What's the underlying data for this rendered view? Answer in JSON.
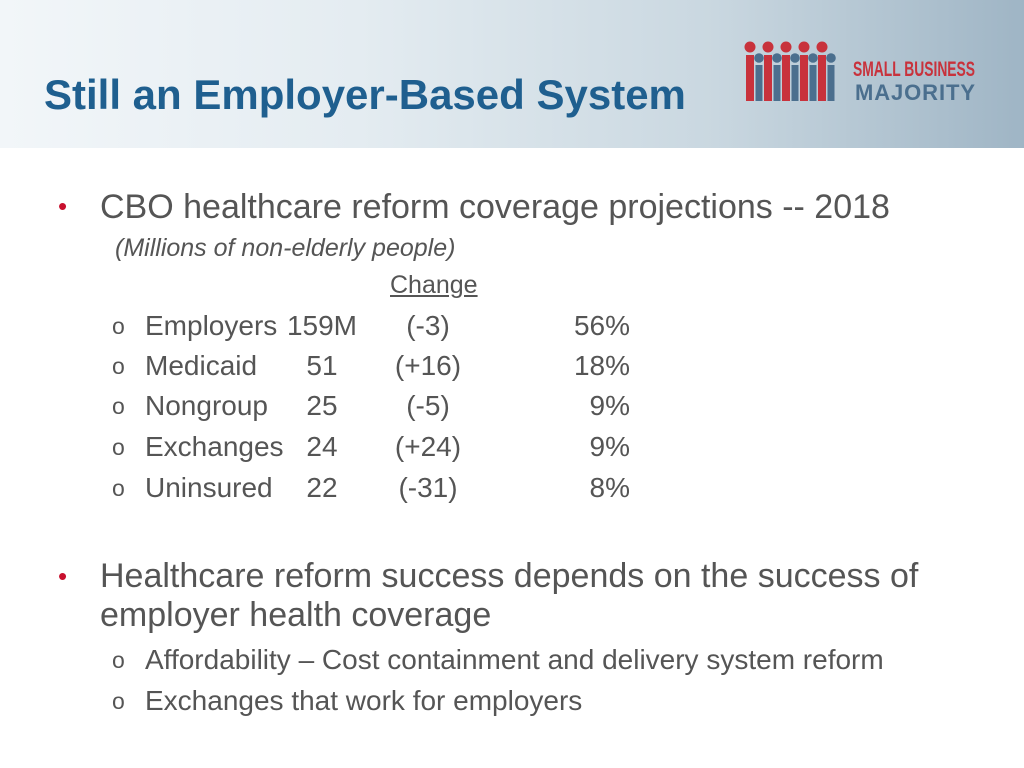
{
  "slide": {
    "title": "Still an Employer-Based System",
    "logo": {
      "line1": "SMALL BUSINESS",
      "line2": "MAJORITY"
    },
    "bullet_marker": "•",
    "sub_marker": "o"
  },
  "section1": {
    "heading": "CBO healthcare reform coverage projections -- 2018",
    "note": "(Millions of non-elderly people)",
    "change_header": "Change",
    "rows": [
      {
        "name": "Employers",
        "value": "159M",
        "change": "(-3)",
        "share": "56%"
      },
      {
        "name": "Medicaid",
        "value": "51",
        "change": "(+16)",
        "share": "18%"
      },
      {
        "name": "Nongroup",
        "value": "25",
        "change": "(-5)",
        "share": "9%"
      },
      {
        "name": "Exchanges",
        "value": "24",
        "change": "(+24)",
        "share": "9%"
      },
      {
        "name": "Uninsured",
        "value": "22",
        "change": "(-31)",
        "share": "8%"
      }
    ]
  },
  "section2": {
    "heading": "Healthcare reform success depends on the success of employer health coverage",
    "items": [
      "Affordability – Cost containment and delivery system reform",
      "Exchanges that work for employers"
    ]
  },
  "colors": {
    "title": "#1f5f8f",
    "text": "#555555",
    "bullet": "#c8102e",
    "logo_red": "#c8323c",
    "logo_blue": "#4b6f8e"
  }
}
